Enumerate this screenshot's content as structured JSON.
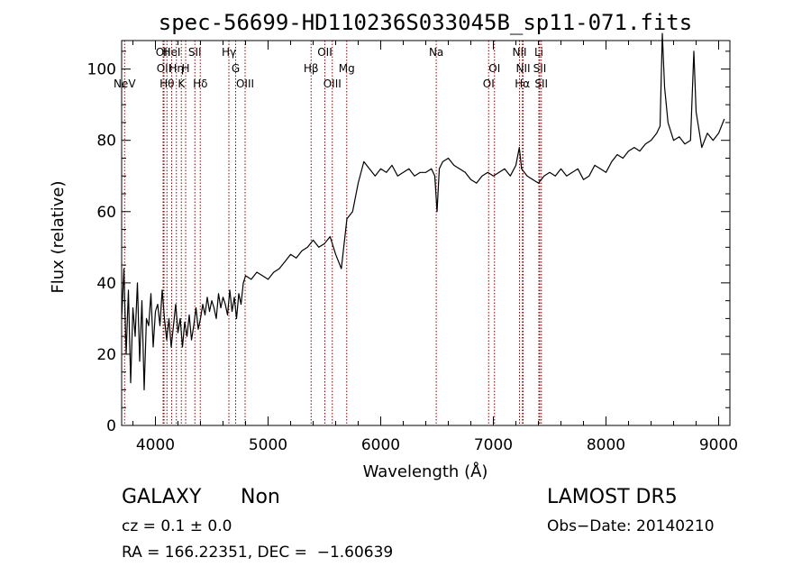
{
  "chart_data": {
    "type": "line",
    "title": "spec-56699-HD110236S033045B_sp11-071.fits",
    "xlabel": "Wavelength (Å)",
    "ylabel": "Flux (relative)",
    "xlim": [
      3700,
      9100
    ],
    "ylim": [
      0,
      108
    ],
    "xticks": [
      4000,
      5000,
      6000,
      7000,
      8000,
      9000
    ],
    "yticks": [
      0,
      20,
      40,
      60,
      80,
      100
    ],
    "grid": false,
    "line_color": "#000000",
    "marker_color": "#8b0000",
    "series": [
      {
        "x": [
          3700,
          3720,
          3740,
          3760,
          3780,
          3800,
          3820,
          3840,
          3860,
          3880,
          3900,
          3920,
          3940,
          3960,
          3980,
          4000,
          4020,
          4040,
          4060,
          4080,
          4100,
          4120,
          4140,
          4160,
          4180,
          4200,
          4220,
          4240,
          4260,
          4280,
          4300,
          4320,
          4340,
          4360,
          4380,
          4400,
          4420,
          4440,
          4460,
          4480,
          4500,
          4520,
          4540,
          4560,
          4580,
          4600,
          4620,
          4640,
          4660,
          4680,
          4700,
          4720,
          4740,
          4760,
          4780,
          4800,
          4850,
          4900,
          4950,
          5000,
          5050,
          5100,
          5150,
          5200,
          5250,
          5300,
          5350,
          5400,
          5450,
          5500,
          5550,
          5600,
          5650,
          5700,
          5750,
          5800,
          5850,
          5900,
          5950,
          6000,
          6050,
          6100,
          6150,
          6200,
          6250,
          6300,
          6350,
          6400,
          6450,
          6480,
          6500,
          6520,
          6550,
          6600,
          6650,
          6700,
          6750,
          6800,
          6850,
          6900,
          6950,
          7000,
          7050,
          7100,
          7150,
          7200,
          7230,
          7250,
          7300,
          7350,
          7400,
          7450,
          7500,
          7550,
          7600,
          7650,
          7700,
          7750,
          7800,
          7850,
          7900,
          7950,
          8000,
          8050,
          8100,
          8150,
          8200,
          8250,
          8300,
          8350,
          8400,
          8450,
          8480,
          8500,
          8520,
          8550,
          8600,
          8650,
          8700,
          8750,
          8780,
          8800,
          8850,
          8900,
          8950,
          9000,
          9050
        ],
        "y": [
          30,
          44,
          20,
          38,
          12,
          33,
          25,
          40,
          18,
          35,
          10,
          30,
          28,
          37,
          22,
          32,
          34,
          28,
          38,
          30,
          24,
          30,
          22,
          28,
          34,
          26,
          30,
          22,
          29,
          25,
          31,
          24,
          28,
          33,
          27,
          30,
          34,
          31,
          36,
          32,
          35,
          33,
          30,
          37,
          33,
          36,
          34,
          31,
          38,
          32,
          36,
          30,
          37,
          34,
          40,
          42,
          41,
          43,
          42,
          41,
          43,
          44,
          46,
          48,
          47,
          49,
          50,
          52,
          50,
          51,
          53,
          48,
          44,
          58,
          60,
          68,
          74,
          72,
          70,
          72,
          71,
          73,
          70,
          71,
          72,
          70,
          71,
          71,
          72,
          70,
          60,
          72,
          74,
          75,
          73,
          72,
          71,
          69,
          68,
          70,
          71,
          70,
          71,
          72,
          70,
          73,
          78,
          72,
          70,
          69,
          68,
          70,
          71,
          70,
          72,
          70,
          71,
          72,
          69,
          70,
          73,
          72,
          71,
          74,
          76,
          75,
          77,
          78,
          77,
          79,
          80,
          82,
          84,
          110,
          95,
          85,
          80,
          81,
          79,
          80,
          105,
          88,
          78,
          82,
          80,
          82,
          86
        ]
      }
    ],
    "line_markers": [
      {
        "name": "NeV",
        "x": 3726,
        "row": 3
      },
      {
        "name": "OII",
        "x": 4068,
        "row": 1
      },
      {
        "name": "OII",
        "x": 4076,
        "row": 2
      },
      {
        "name": "Hθ",
        "x": 4102,
        "row": 3
      },
      {
        "name": "HeI",
        "x": 4144,
        "row": 1
      },
      {
        "name": "Hη",
        "x": 4186,
        "row": 2
      },
      {
        "name": "K",
        "x": 4230,
        "row": 3
      },
      {
        "name": "H",
        "x": 4268,
        "row": 2
      },
      {
        "name": "SII",
        "x": 4350,
        "row": 1
      },
      {
        "name": "Hδ",
        "x": 4398,
        "row": 3
      },
      {
        "name": "Hγ",
        "x": 4652,
        "row": 1
      },
      {
        "name": "G",
        "x": 4712,
        "row": 2
      },
      {
        "name": "OIII",
        "x": 4796,
        "row": 3
      },
      {
        "name": "Hβ",
        "x": 5382,
        "row": 2
      },
      {
        "name": "OII",
        "x": 5504,
        "row": 1
      },
      {
        "name": "OIII",
        "x": 5570,
        "row": 3
      },
      {
        "name": "Mg",
        "x": 5698,
        "row": 2
      },
      {
        "name": "Na",
        "x": 6493,
        "row": 1
      },
      {
        "name": "OI",
        "x": 6958,
        "row": 3
      },
      {
        "name": "OI",
        "x": 7010,
        "row": 2
      },
      {
        "name": "NII",
        "x": 7232,
        "row": 1
      },
      {
        "name": "NII",
        "x": 7264,
        "row": 2
      },
      {
        "name": "Hα",
        "x": 7258,
        "row": 3
      },
      {
        "name": "Li",
        "x": 7404,
        "row": 1
      },
      {
        "name": "SII",
        "x": 7412,
        "row": 2
      },
      {
        "name": "SII",
        "x": 7426,
        "row": 3
      }
    ]
  },
  "info": {
    "class": "GALAXY",
    "subclass": "Non",
    "cz": "cz = 0.1 ± 0.0",
    "coords": "RA = 166.22351, DEC =  −1.60639",
    "survey": "LAMOST DR5",
    "obs_date": "Obs−Date: 20140210"
  }
}
